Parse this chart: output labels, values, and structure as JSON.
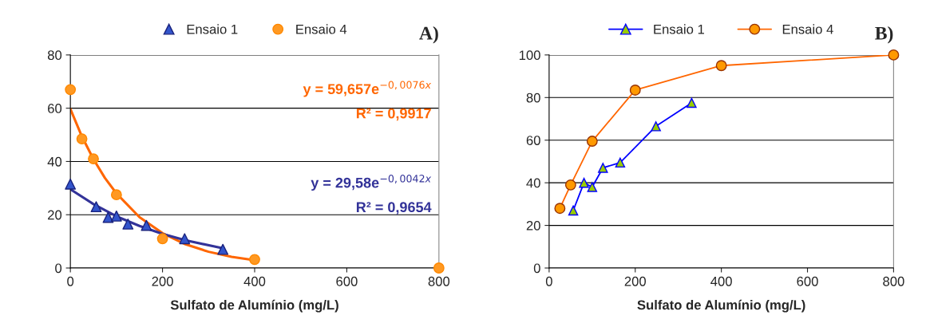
{
  "chart_data": [
    {
      "type": "scatter",
      "title": "A)",
      "xlabel": "Sulfato de Alumínio (mg/L)",
      "xlim": [
        0,
        800
      ],
      "xticks": [
        0,
        200,
        400,
        600,
        800
      ],
      "ylim": [
        0,
        80
      ],
      "yticks": [
        0,
        20,
        40,
        60,
        80
      ],
      "grid": "y",
      "legend": "top",
      "series": [
        {
          "name": "Ensaio 1",
          "type": "scatter",
          "marker": "triangle",
          "color": "#3355cc",
          "x": [
            0,
            56,
            82,
            100,
            125,
            165,
            248,
            331
          ],
          "values": [
            31.5,
            23,
            19,
            19.5,
            16.5,
            16,
            11,
            7
          ]
        },
        {
          "name": "Ensaio 4",
          "type": "scatter",
          "marker": "circle",
          "color": "#ff9922",
          "x": [
            0,
            25,
            50,
            100,
            200,
            400,
            800
          ],
          "values": [
            67,
            48.5,
            41,
            27.5,
            11,
            3.2,
            0
          ]
        },
        {
          "type": "line",
          "color": "#ff6600",
          "x": [
            0,
            25,
            50,
            75,
            100,
            150,
            200,
            250,
            300,
            350,
            400
          ],
          "values": [
            59.7,
            49.4,
            40.9,
            33.8,
            28,
            19.1,
            13.1,
            8.9,
            6.1,
            4.2,
            2.9
          ]
        },
        {
          "type": "line",
          "color": "#333399",
          "x": [
            0,
            50,
            100,
            150,
            200,
            250,
            331
          ],
          "values": [
            29.6,
            24,
            19.4,
            15.8,
            12.8,
            10.4,
            7.4
          ]
        }
      ],
      "annotations": [
        "y = 59,657e$^{−0,0076x}$",
        "R² = 0,9917",
        "y = 29,58e$^{−0,0042x}$",
        "R² = 0,9654"
      ]
    },
    {
      "type": "line",
      "title": "B)",
      "xlabel": "Sulfato de Alumínio (mg/L)",
      "xlim": [
        0,
        800
      ],
      "xticks": [
        0,
        200,
        400,
        600,
        800
      ],
      "ylim": [
        0,
        100
      ],
      "yticks": [
        0,
        20,
        40,
        60,
        80,
        100
      ],
      "grid": "y",
      "legend": "top",
      "series": [
        {
          "name": "Ensaio 1",
          "marker": "triangle",
          "color": "#0000ff",
          "x": [
            56,
            81,
            100,
            125,
            165,
            248,
            331
          ],
          "values": [
            27,
            40,
            38,
            47,
            49.5,
            66.5,
            77.5
          ]
        },
        {
          "name": "Ensaio 4",
          "marker": "circle",
          "color": "#ff6600",
          "x": [
            25,
            50,
            100,
            200,
            400,
            800
          ],
          "values": [
            28,
            39,
            59.5,
            83.5,
            95,
            100
          ]
        }
      ]
    }
  ]
}
